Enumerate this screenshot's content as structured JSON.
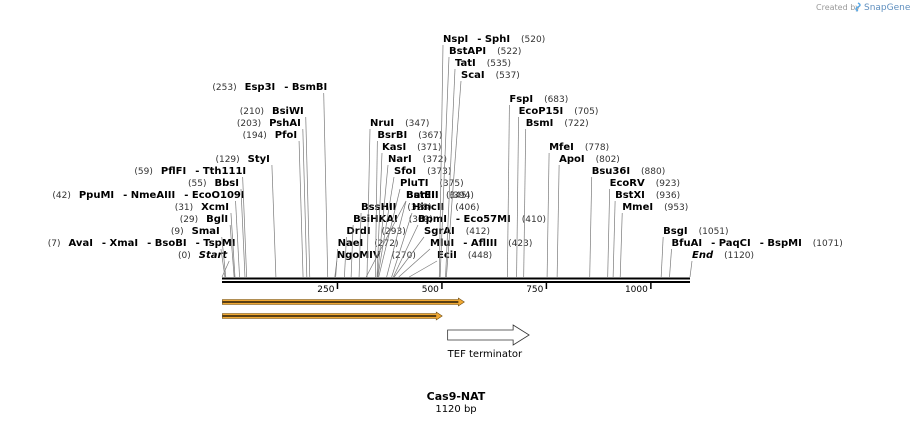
{
  "credit": {
    "text": "Created by",
    "brand": "SnapGene"
  },
  "title": "Cas9-NAT",
  "length_label": "1120 bp",
  "axis": {
    "length": 1120,
    "ticks": [
      250,
      500,
      750,
      1000
    ]
  },
  "features": [
    {
      "name": "orange-arrow-1",
      "start": 1,
      "end": 580,
      "color": "#f0a832",
      "label": ""
    },
    {
      "name": "orange-arrow-2",
      "start": 1,
      "end": 527,
      "color": "#f0a832",
      "label": ""
    },
    {
      "name": "tef-terminator",
      "start": 540,
      "end": 735,
      "color": "#ffffff",
      "label": "TEF terminator"
    }
  ],
  "sites": [
    {
      "row": 0,
      "pos": 0,
      "pos_label": "(0)",
      "names": [
        "Start"
      ],
      "italic": true
    },
    {
      "row": 1,
      "pos": 7,
      "pos_label": "(7)",
      "names": [
        "AvaI",
        "XmaI",
        "BsoBI",
        "TspMI"
      ]
    },
    {
      "row": 2,
      "pos": 9,
      "pos_label": "(9)",
      "names": [
        "SmaI"
      ]
    },
    {
      "row": 3,
      "pos": 29,
      "pos_label": "(29)",
      "names": [
        "BglI"
      ]
    },
    {
      "row": 4,
      "pos": 31,
      "pos_label": "(31)",
      "names": [
        "XcmI"
      ]
    },
    {
      "row": 5,
      "pos": 42,
      "pos_label": "(42)",
      "names": [
        "PpuMI",
        "NmeAIII",
        "EcoO109I"
      ]
    },
    {
      "row": 6,
      "pos": 55,
      "pos_label": "(55)",
      "names": [
        "BbsI"
      ]
    },
    {
      "row": 7,
      "pos": 59,
      "pos_label": "(59)",
      "names": [
        "PflFI",
        "Tth111I"
      ]
    },
    {
      "row": 8,
      "pos": 129,
      "pos_label": "(129)",
      "names": [
        "StyI"
      ]
    },
    {
      "row": 10,
      "pos": 194,
      "pos_label": "(194)",
      "names": [
        "PfoI"
      ]
    },
    {
      "row": 11,
      "pos": 203,
      "pos_label": "(203)",
      "names": [
        "PshAI"
      ]
    },
    {
      "row": 12,
      "pos": 210,
      "pos_label": "(210)",
      "names": [
        "BsiWI"
      ]
    },
    {
      "row": 14,
      "pos": 253,
      "pos_label": "(253)",
      "names": [
        "Esp3I",
        "BsmBI"
      ]
    },
    {
      "row": 0,
      "pos": 270,
      "pos_label": "(270)",
      "names": [
        "NgoMIV"
      ]
    },
    {
      "row": 1,
      "pos": 272,
      "pos_label": "(272)",
      "names": [
        "NaeI"
      ]
    },
    {
      "row": 2,
      "pos": 293,
      "pos_label": "(293)",
      "names": [
        "DrdI"
      ]
    },
    {
      "row": 3,
      "pos": 309,
      "pos_label": "(309)",
      "names": [
        "BsiHKAI"
      ]
    },
    {
      "row": 4,
      "pos": 328,
      "pos_label": "(328)",
      "names": [
        "BssHII"
      ]
    },
    {
      "row": 5,
      "pos": 345,
      "pos_label": "(345)",
      "names": [
        "BanII"
      ]
    },
    {
      "row": 0,
      "pos": 448,
      "pos_label": "(448)",
      "names": [
        "EciI"
      ]
    },
    {
      "row": 1,
      "pos": 423,
      "pos_label": "(423)",
      "names": [
        "MluI",
        "AflIII"
      ]
    },
    {
      "row": 2,
      "pos": 412,
      "pos_label": "(412)",
      "names": [
        "SgrAI"
      ]
    },
    {
      "row": 3,
      "pos": 410,
      "pos_label": "(410)",
      "names": [
        "BpmI",
        "Eco57MI"
      ]
    },
    {
      "row": 4,
      "pos": 406,
      "pos_label": "(406)",
      "names": [
        "HincII"
      ]
    },
    {
      "row": 5,
      "pos": 394,
      "pos_label": "(394)",
      "names": [
        "BstEII"
      ]
    },
    {
      "row": 6,
      "pos": 375,
      "pos_label": "(375)",
      "names": [
        "PluTI"
      ]
    },
    {
      "row": 7,
      "pos": 373,
      "pos_label": "(373)",
      "names": [
        "SfoI"
      ]
    },
    {
      "row": 8,
      "pos": 372,
      "pos_label": "(372)",
      "names": [
        "NarI"
      ]
    },
    {
      "row": 9,
      "pos": 371,
      "pos_label": "(371)",
      "names": [
        "KasI"
      ]
    },
    {
      "row": 10,
      "pos": 367,
      "pos_label": "(367)",
      "names": [
        "BsrBI"
      ]
    },
    {
      "row": 11,
      "pos": 347,
      "pos_label": "(347)",
      "names": [
        "NruI"
      ]
    },
    {
      "row": 15,
      "pos": 537,
      "pos_label": "(537)",
      "names": [
        "ScaI"
      ]
    },
    {
      "row": 16,
      "pos": 535,
      "pos_label": "(535)",
      "names": [
        "TatI"
      ]
    },
    {
      "row": 17,
      "pos": 522,
      "pos_label": "(522)",
      "names": [
        "BstAPI"
      ]
    },
    {
      "row": 18,
      "pos": 520,
      "pos_label": "(520)",
      "names": [
        "NspI",
        "SphI"
      ]
    },
    {
      "row": 13,
      "pos": 683,
      "pos_label": "(683)",
      "names": [
        "FspI"
      ]
    },
    {
      "row": 12,
      "pos": 705,
      "pos_label": "(705)",
      "names": [
        "EcoP15I"
      ]
    },
    {
      "row": 11,
      "pos": 722,
      "pos_label": "(722)",
      "names": [
        "BsmI"
      ]
    },
    {
      "row": 9,
      "pos": 778,
      "pos_label": "(778)",
      "names": [
        "MfeI"
      ]
    },
    {
      "row": 8,
      "pos": 802,
      "pos_label": "(802)",
      "names": [
        "ApoI"
      ]
    },
    {
      "row": 7,
      "pos": 880,
      "pos_label": "(880)",
      "names": [
        "Bsu36I"
      ]
    },
    {
      "row": 6,
      "pos": 923,
      "pos_label": "(923)",
      "names": [
        "EcoRV"
      ]
    },
    {
      "row": 5,
      "pos": 936,
      "pos_label": "(936)",
      "names": [
        "BstXI"
      ]
    },
    {
      "row": 4,
      "pos": 953,
      "pos_label": "(953)",
      "names": [
        "MmeI"
      ]
    },
    {
      "row": 2,
      "pos": 1051,
      "pos_label": "(1051)",
      "names": [
        "BsgI"
      ]
    },
    {
      "row": 1,
      "pos": 1071,
      "pos_label": "(1071)",
      "names": [
        "BfuAI",
        "PaqCI",
        "BspMI"
      ]
    },
    {
      "row": 0,
      "pos": 1120,
      "pos_label": "(1120)",
      "names": [
        "End"
      ],
      "italic": true
    }
  ]
}
